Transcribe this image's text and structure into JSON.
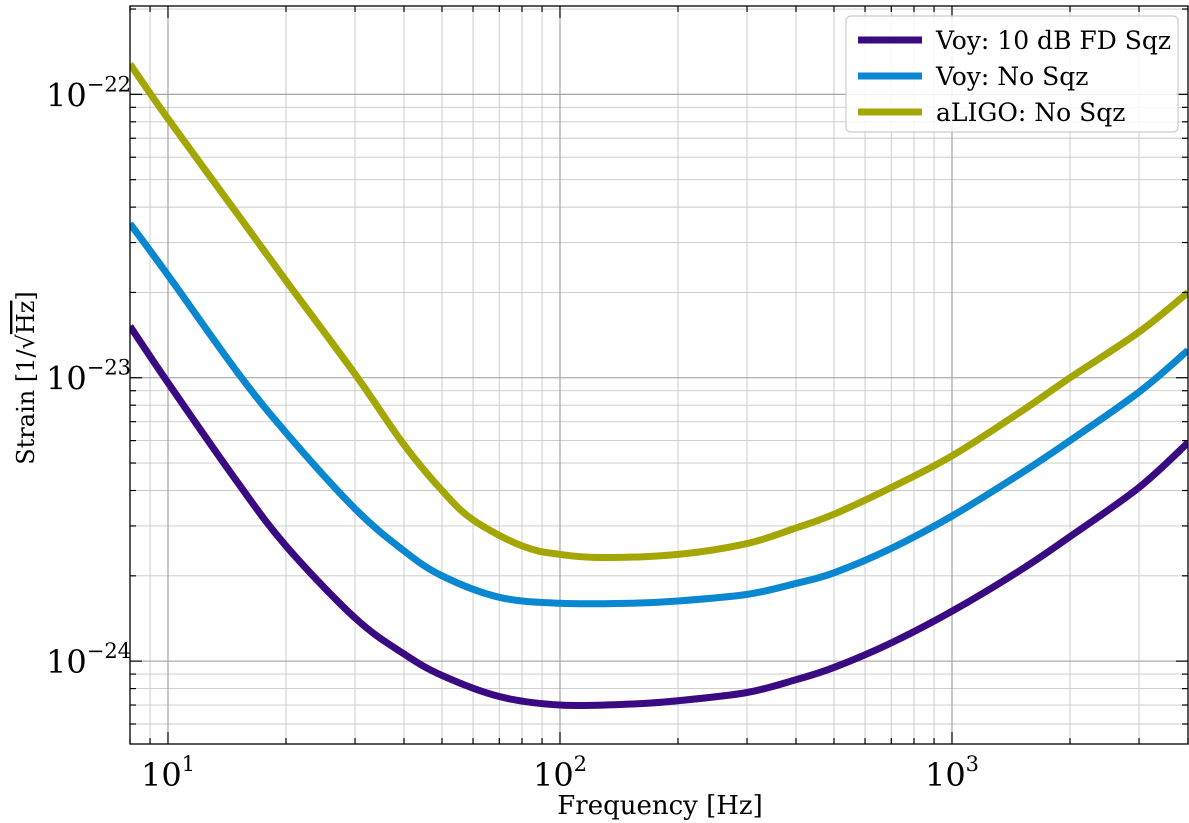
{
  "chart_data": {
    "type": "line",
    "xscale": "log",
    "yscale": "log",
    "xlim": [
      8,
      4000
    ],
    "ylim": [
      5.1e-25,
      2.05e-22
    ],
    "xlabel": "Frequency [Hz]",
    "ylabel_prefix": "Strain [1/",
    "ylabel_radicand": "Hz",
    "ylabel_suffix": "]",
    "grid": true,
    "legend_position": "top-right",
    "x_ticks": [
      {
        "value": 10,
        "base": "10",
        "exp": "1"
      },
      {
        "value": 100,
        "base": "10",
        "exp": "2"
      },
      {
        "value": 1000,
        "base": "10",
        "exp": "3"
      }
    ],
    "y_ticks": [
      {
        "value": 1e-24,
        "base": "10",
        "exp": "−24"
      },
      {
        "value": 1e-23,
        "base": "10",
        "exp": "−23"
      },
      {
        "value": 1e-22,
        "base": "10",
        "exp": "−22"
      }
    ],
    "series": [
      {
        "name": "Voy: 10 dB FD Sqz",
        "color": "#3a0a82",
        "points": [
          [
            8,
            1.52e-23
          ],
          [
            10,
            9.6e-24
          ],
          [
            15,
            4.3e-24
          ],
          [
            20,
            2.55e-24
          ],
          [
            30,
            1.42e-24
          ],
          [
            40,
            1.06e-24
          ],
          [
            50,
            8.9e-25
          ],
          [
            70,
            7.5e-25
          ],
          [
            100,
            7e-25
          ],
          [
            150,
            7.05e-25
          ],
          [
            200,
            7.25e-25
          ],
          [
            300,
            7.75e-25
          ],
          [
            400,
            8.6e-25
          ],
          [
            500,
            9.5e-25
          ],
          [
            700,
            1.16e-24
          ],
          [
            1000,
            1.5e-24
          ],
          [
            1500,
            2.1e-24
          ],
          [
            2000,
            2.75e-24
          ],
          [
            3000,
            4.1e-24
          ],
          [
            4000,
            5.9e-24
          ]
        ]
      },
      {
        "name": "Voy: No Sqz",
        "color": "#0a87d1",
        "points": [
          [
            8,
            3.5e-23
          ],
          [
            10,
            2.3e-23
          ],
          [
            15,
            1.05e-23
          ],
          [
            20,
            6.4e-24
          ],
          [
            30,
            3.45e-24
          ],
          [
            40,
            2.45e-24
          ],
          [
            50,
            2e-24
          ],
          [
            70,
            1.68e-24
          ],
          [
            100,
            1.6e-24
          ],
          [
            150,
            1.6e-24
          ],
          [
            200,
            1.63e-24
          ],
          [
            300,
            1.72e-24
          ],
          [
            400,
            1.88e-24
          ],
          [
            500,
            2.05e-24
          ],
          [
            700,
            2.5e-24
          ],
          [
            1000,
            3.25e-24
          ],
          [
            1500,
            4.6e-24
          ],
          [
            2000,
            6e-24
          ],
          [
            3000,
            8.9e-24
          ],
          [
            4000,
            1.25e-23
          ]
        ]
      },
      {
        "name": "aLIGO: No Sqz",
        "color": "#a4a703",
        "points": [
          [
            8,
            1.28e-22
          ],
          [
            10,
            8.2e-23
          ],
          [
            15,
            3.8e-23
          ],
          [
            20,
            2.2e-23
          ],
          [
            30,
            1.03e-23
          ],
          [
            40,
            5.8e-24
          ],
          [
            50,
            4e-24
          ],
          [
            60,
            3.15e-24
          ],
          [
            80,
            2.55e-24
          ],
          [
            100,
            2.38e-24
          ],
          [
            130,
            2.32e-24
          ],
          [
            200,
            2.38e-24
          ],
          [
            300,
            2.6e-24
          ],
          [
            400,
            2.95e-24
          ],
          [
            500,
            3.3e-24
          ],
          [
            700,
            4.1e-24
          ],
          [
            1000,
            5.3e-24
          ],
          [
            1500,
            7.6e-24
          ],
          [
            2000,
            1e-23
          ],
          [
            3000,
            1.45e-23
          ],
          [
            4000,
            2e-23
          ]
        ]
      }
    ]
  }
}
